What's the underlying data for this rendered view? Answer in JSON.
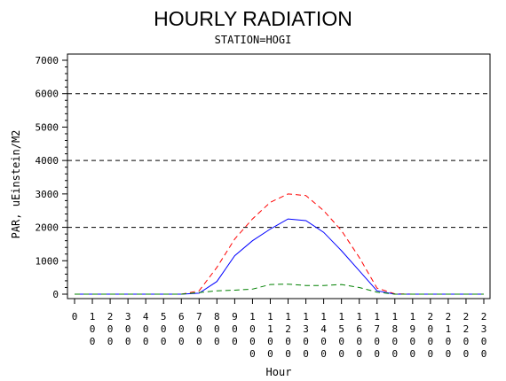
{
  "chart_data": {
    "type": "line",
    "title": "HOURLY RADIATION",
    "subtitle": "STATION=HOGI",
    "xlabel": "Hour",
    "ylabel": "PAR, uEinstein/M2",
    "ylim": [
      0,
      7000
    ],
    "xlim": [
      0,
      2300
    ],
    "y_ticks": [
      "0",
      "1000",
      "2000",
      "3000",
      "4000",
      "5000",
      "6000",
      "7000"
    ],
    "x_ticks": [
      "0",
      "100",
      "200",
      "300",
      "400",
      "500",
      "600",
      "700",
      "800",
      "900",
      "1000",
      "1100",
      "1200",
      "1300",
      "1400",
      "1500",
      "1600",
      "1700",
      "1800",
      "1900",
      "2000",
      "2100",
      "2200",
      "2300"
    ],
    "reference_lines": [
      2000,
      4000,
      6000
    ],
    "x": [
      0,
      100,
      200,
      300,
      400,
      500,
      600,
      700,
      800,
      900,
      1000,
      1100,
      1200,
      1300,
      1400,
      1500,
      1600,
      1700,
      1800,
      1900,
      2000,
      2100,
      2200,
      2300
    ],
    "series": [
      {
        "color": "#ff0000",
        "dash": "dashed",
        "values": [
          0,
          0,
          0,
          0,
          0,
          0,
          0,
          100,
          800,
          1650,
          2250,
          2750,
          3000,
          2950,
          2500,
          1900,
          1100,
          180,
          10,
          0,
          0,
          0,
          0,
          0
        ]
      },
      {
        "color": "#0000ff",
        "dash": "solid",
        "values": [
          0,
          0,
          0,
          0,
          0,
          0,
          0,
          30,
          380,
          1150,
          1600,
          1950,
          2250,
          2200,
          1850,
          1300,
          700,
          100,
          0,
          0,
          0,
          0,
          0,
          0
        ]
      },
      {
        "color": "#008000",
        "dash": "dashed",
        "values": [
          0,
          0,
          0,
          0,
          0,
          0,
          0,
          50,
          100,
          120,
          150,
          290,
          300,
          260,
          260,
          290,
          200,
          60,
          0,
          0,
          0,
          0,
          0,
          0
        ]
      }
    ]
  }
}
